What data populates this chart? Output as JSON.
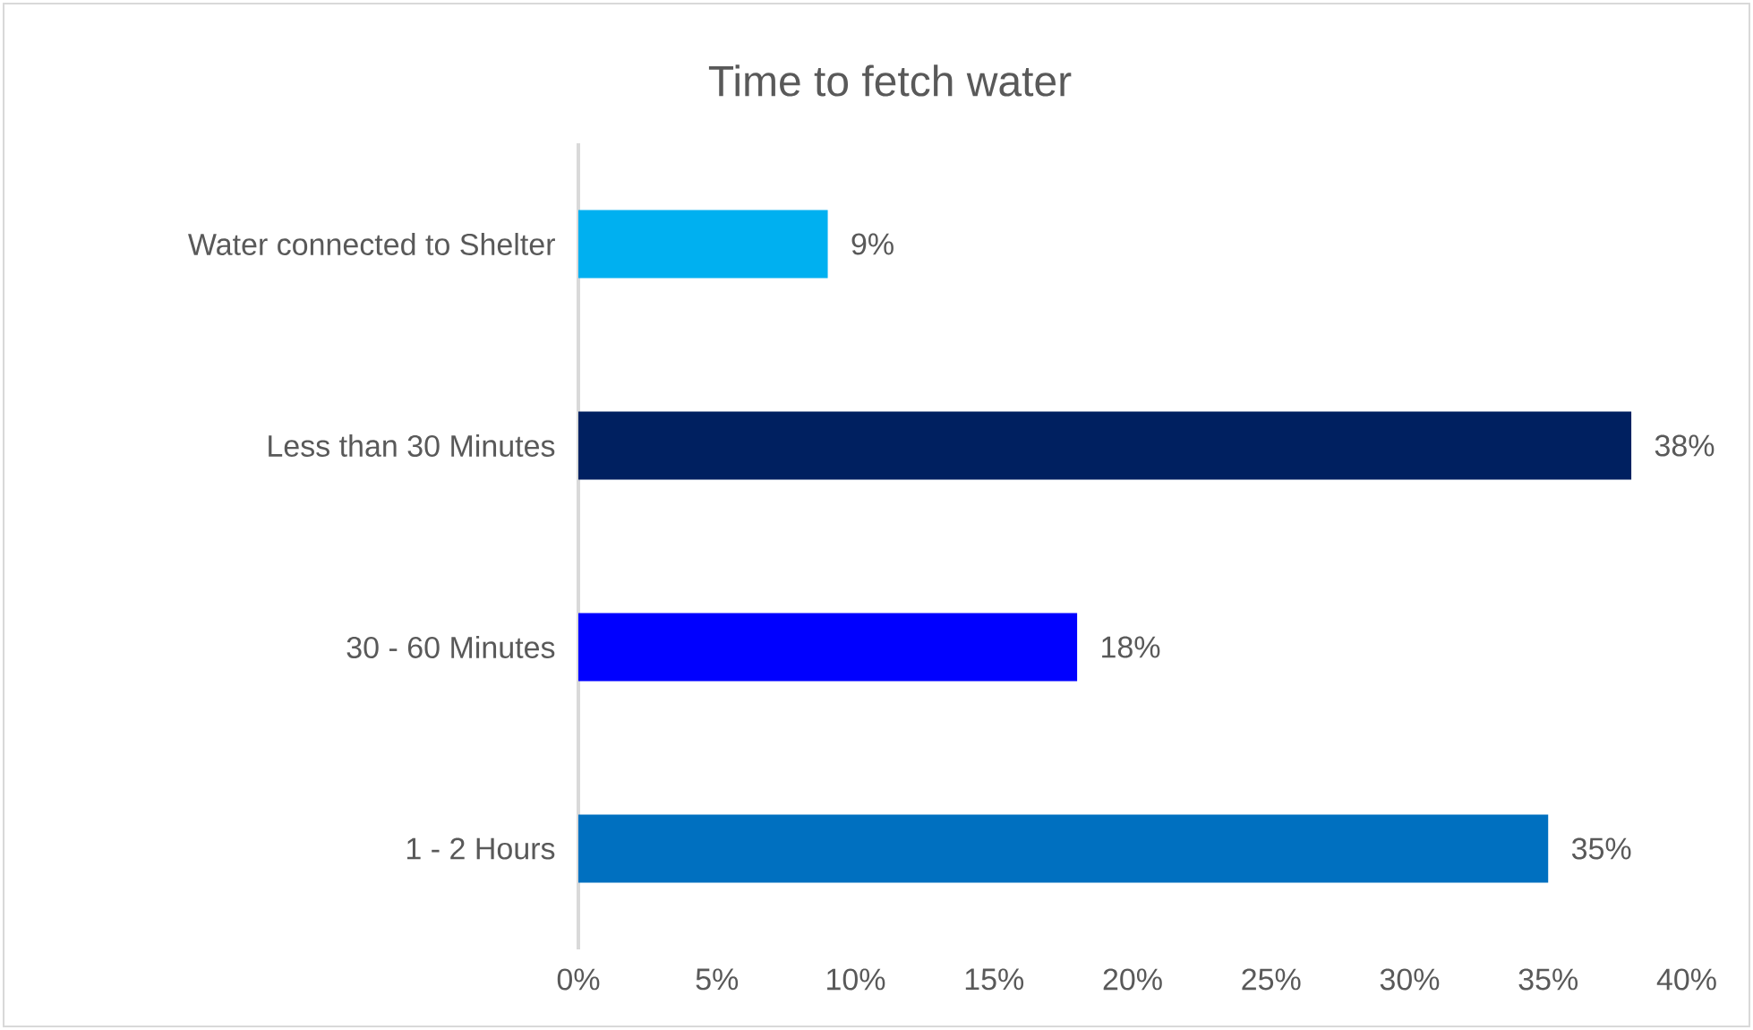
{
  "chart_data": {
    "type": "bar",
    "orientation": "horizontal",
    "title": "Time to fetch water",
    "categories": [
      "Water connected to Shelter",
      "Less than 30 Minutes",
      "30 - 60 Minutes",
      "1 - 2 Hours"
    ],
    "values": [
      9,
      38,
      18,
      35
    ],
    "colors": [
      "#00b0f0",
      "#002060",
      "#0000ff",
      "#0070c0"
    ],
    "value_labels": [
      "9%",
      "38%",
      "18%",
      "35%"
    ],
    "xlim": [
      0,
      40
    ],
    "xticks": [
      {
        "value": 0,
        "label": "0%"
      },
      {
        "value": 5,
        "label": "5%"
      },
      {
        "value": 10,
        "label": "10%"
      },
      {
        "value": 15,
        "label": "15%"
      },
      {
        "value": 20,
        "label": "20%"
      },
      {
        "value": 25,
        "label": "25%"
      },
      {
        "value": 30,
        "label": "30%"
      },
      {
        "value": 35,
        "label": "35%"
      },
      {
        "value": 40,
        "label": "40%"
      }
    ]
  }
}
